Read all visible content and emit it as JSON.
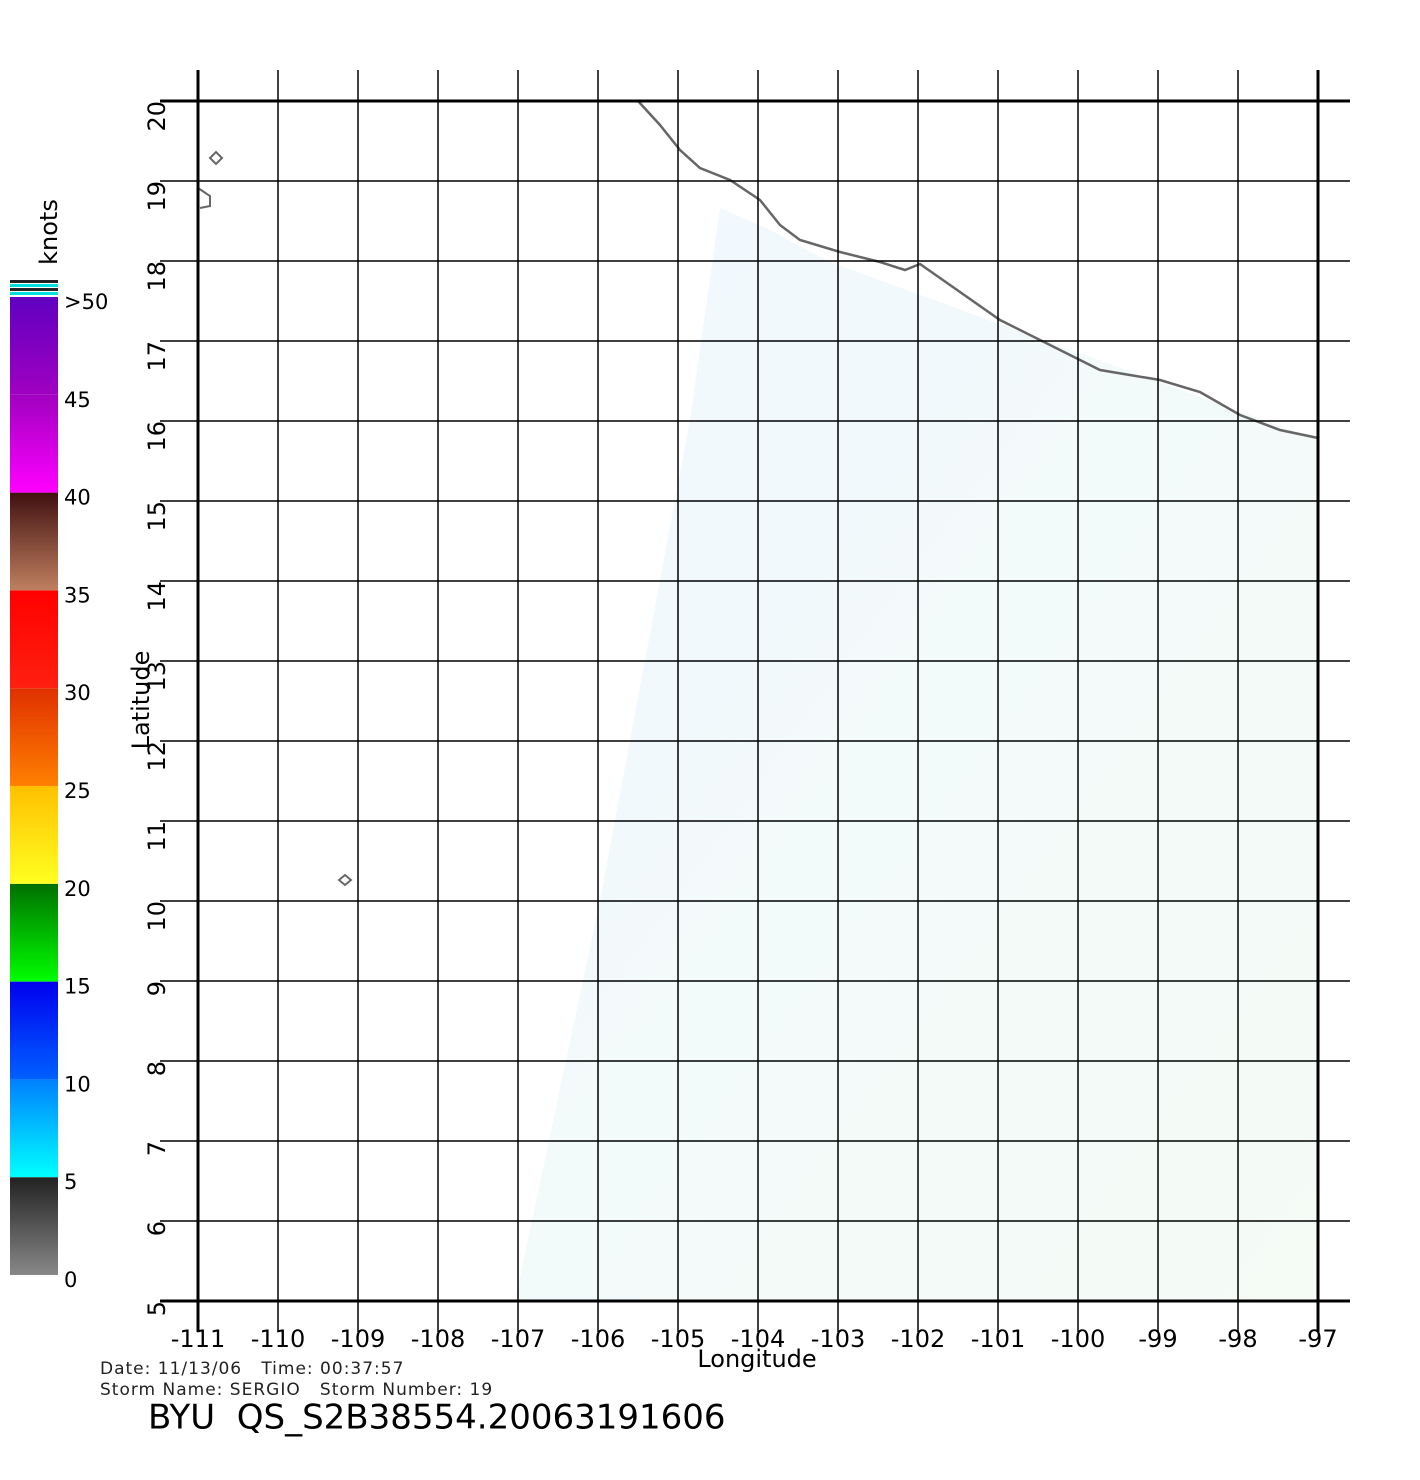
{
  "chart_data": {
    "type": "map",
    "xlabel": "Longitude",
    "ylabel": "Latitude",
    "xlim": [
      -111,
      -97
    ],
    "ylim": [
      5,
      20
    ],
    "xticks": [
      -111,
      -110,
      -109,
      -108,
      -107,
      -106,
      -105,
      -104,
      -103,
      -102,
      -101,
      -100,
      -99,
      -98,
      -97
    ],
    "yticks": [
      5,
      6,
      7,
      8,
      9,
      10,
      11,
      12,
      13,
      14,
      15,
      16,
      17,
      18,
      19,
      20
    ],
    "grid": true,
    "colorbar": {
      "title": "knots",
      "lim": [
        0,
        50
      ],
      "ticks": [
        0,
        5,
        10,
        15,
        20,
        25,
        30,
        35,
        40,
        45,
        {
          "value": 50,
          "label": ">50"
        }
      ],
      "colors": [
        [
          "#888888",
          "#222222"
        ],
        [
          "#00ffff",
          "#0080ff"
        ],
        [
          "#0060ff",
          "#0000ee"
        ],
        [
          "#00ff00",
          "#007000"
        ],
        [
          "#ffff20",
          "#ffc000"
        ],
        [
          "#ff8000",
          "#e03000"
        ],
        [
          "#ff2010",
          "#ff0000"
        ],
        [
          "#c08060",
          "#401010"
        ],
        [
          "#ff00ff",
          "#a000c0"
        ],
        [
          "#a000c0",
          "#6000c0"
        ]
      ]
    },
    "date_line": "Date: 11/13/06   Time: 00:37:57",
    "storm_line": "Storm Name: SERGIO   Storm Number: 19",
    "title": "BYU  QS_S2B38554.20063191606"
  }
}
